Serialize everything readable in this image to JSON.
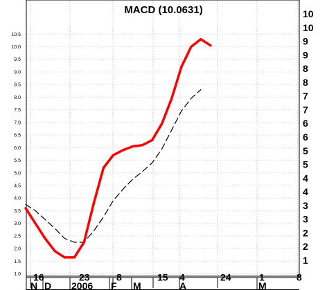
{
  "chart_data": {
    "type": "line",
    "title": "MACD (10.0631)",
    "xlabel": "",
    "ylabel": "",
    "ylim": [
      0.9,
      10.95
    ],
    "grid": true,
    "left_ticks": [
      "1.0",
      "1.5",
      "2.0",
      "2.5",
      "3.0",
      "3.5",
      "4.0",
      "4.5",
      "5.0",
      "5.5",
      "6.0",
      "6.5",
      "7.0",
      "7.5",
      "8.0",
      "8.5",
      "9.0",
      "9.5",
      "10.0",
      "10.5"
    ],
    "right_ticks": [
      "1",
      "2",
      "2",
      "3",
      "3",
      "4",
      "4",
      "5",
      "5",
      "6",
      "6",
      "7",
      "7",
      "8",
      "8",
      "9",
      "9",
      "10",
      "10"
    ],
    "x_day_labels": [
      "16",
      "23",
      "8",
      "15",
      "4",
      "24",
      "1",
      "8"
    ],
    "x_month_labels": [
      "N",
      "D",
      "2006",
      "F",
      "M",
      "A",
      "M"
    ],
    "series": [
      {
        "color": "#ff0000",
        "style": "solid",
        "values": [
          3.6,
          3.0,
          2.4,
          1.9,
          1.65,
          1.65,
          2.25,
          3.8,
          5.2,
          5.7,
          5.9,
          6.05,
          6.1,
          6.3,
          6.95,
          7.95,
          9.2,
          10.0,
          10.3,
          10.05
        ]
      },
      {
        "color": "#000000",
        "style": "dashed",
        "values": [
          3.75,
          3.5,
          3.15,
          2.8,
          2.4,
          2.25,
          2.25,
          2.7,
          3.25,
          3.9,
          4.35,
          4.75,
          5.05,
          5.4,
          5.95,
          6.7,
          7.45,
          7.95,
          8.3
        ]
      }
    ]
  }
}
